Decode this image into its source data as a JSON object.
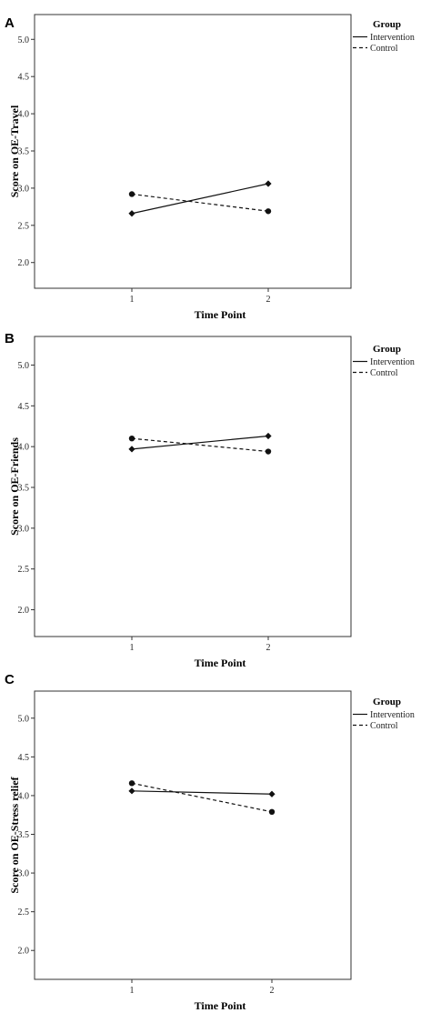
{
  "chart_data": [
    {
      "type": "line",
      "panel": "A",
      "x": [
        1,
        2
      ],
      "xlabel": "Time Point",
      "ylabel": "Score on OE-Travel",
      "ylim": [
        1.85,
        5.15
      ],
      "yticks": [
        "2.0",
        "2.5",
        "3.0",
        "3.5",
        "4.0",
        "4.5",
        "5.0"
      ],
      "xticks": [
        "1",
        "2"
      ],
      "legend_title": "Group",
      "series": [
        {
          "name": "Intervention",
          "values": [
            2.66,
            3.06
          ],
          "style": "solid",
          "marker": "diamond"
        },
        {
          "name": "Control",
          "values": [
            2.92,
            2.69
          ],
          "style": "dashed",
          "marker": "circle"
        }
      ]
    },
    {
      "type": "line",
      "panel": "B",
      "x": [
        1,
        2
      ],
      "xlabel": "Time Point",
      "ylabel": "Score on OE-Friends",
      "ylim": [
        1.85,
        5.15
      ],
      "yticks": [
        "2.0",
        "2.5",
        "3.0",
        "3.5",
        "4.0",
        "4.5",
        "5.0"
      ],
      "xticks": [
        "1",
        "2"
      ],
      "legend_title": "Group",
      "series": [
        {
          "name": "Intervention",
          "values": [
            3.97,
            4.13
          ],
          "style": "solid",
          "marker": "diamond"
        },
        {
          "name": "Control",
          "values": [
            4.1,
            3.94
          ],
          "style": "dashed",
          "marker": "circle"
        }
      ]
    },
    {
      "type": "line",
      "panel": "C",
      "x": [
        1,
        2
      ],
      "xlabel": "Time Point",
      "ylabel": "Score on OE-Stress relief",
      "ylim": [
        1.85,
        5.15
      ],
      "yticks": [
        "2.0",
        "2.5",
        "3.0",
        "3.5",
        "4.0",
        "4.5",
        "5.0"
      ],
      "xticks": [
        "1",
        "2"
      ],
      "legend_title": "Group",
      "series": [
        {
          "name": "Intervention",
          "values": [
            4.06,
            4.02
          ],
          "style": "solid",
          "marker": "diamond"
        },
        {
          "name": "Control",
          "values": [
            4.16,
            3.79
          ],
          "style": "dashed",
          "marker": "circle"
        }
      ]
    }
  ]
}
